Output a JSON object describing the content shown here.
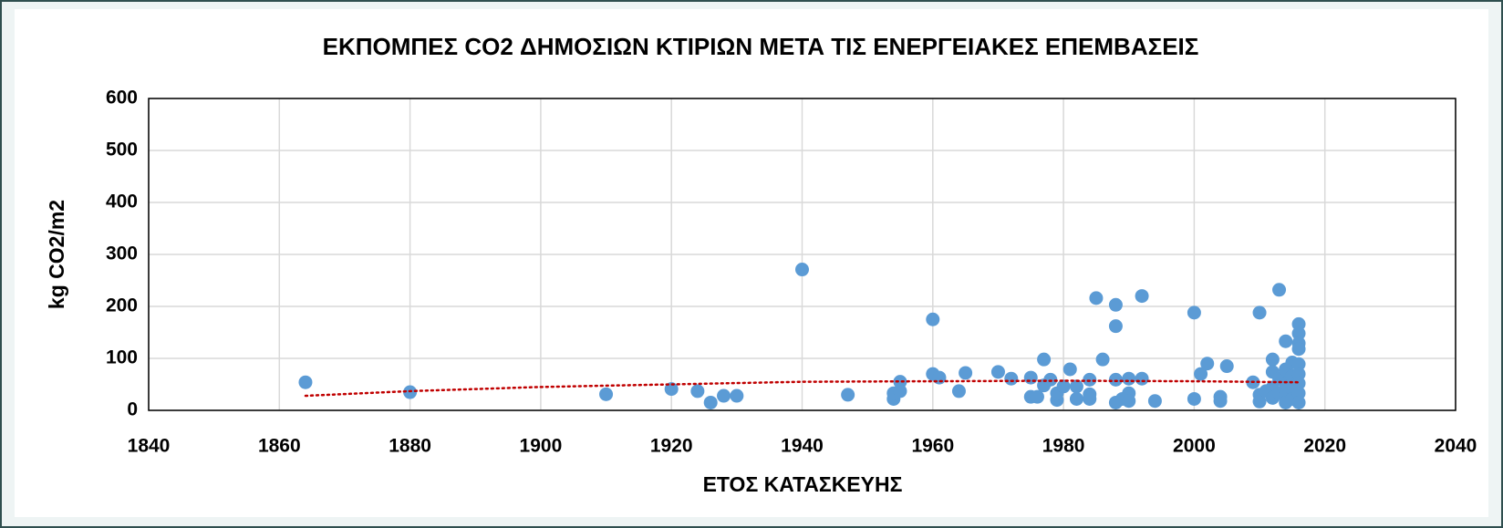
{
  "chart_data": {
    "type": "scatter",
    "title": "ΕΚΠΟΜΠΕΣ CO2 ΔΗΜΟΣΙΩΝ ΚΤΙΡΙΩΝ ΜΕΤΑ ΤΙΣ ΕΝΕΡΓΕΙΑΚΕΣ ΕΠΕΜΒΑΣΕΙΣ",
    "x_label": "ΕΤΟΣ ΚΑΤΑΣΚΕΥΗΣ",
    "y_label": "kg CO2/m2",
    "xlim": [
      1840,
      2040
    ],
    "xticks": [
      1840,
      1860,
      1880,
      1900,
      1920,
      1940,
      1960,
      1980,
      2000,
      2020,
      2040
    ],
    "ylim": [
      0,
      600
    ],
    "yticks": [
      0,
      100,
      200,
      300,
      400,
      500,
      600
    ],
    "grid": true,
    "series": [
      {
        "color": "#5b9bd5",
        "x": [
          1864,
          1880,
          1910,
          1920,
          1924,
          1926,
          1928,
          1930,
          1940,
          1947,
          1954,
          1954,
          1955,
          1955,
          1960,
          1960,
          1961,
          1964,
          1965,
          1970,
          1972,
          1975,
          1975,
          1976,
          1977,
          1977,
          1978,
          1979,
          1979,
          1980,
          1981,
          1982,
          1982,
          1984,
          1984,
          1984,
          1985,
          1986,
          1988,
          1988,
          1988,
          1988,
          1989,
          1990,
          1990,
          1990,
          1992,
          1992,
          1994,
          2000,
          2000,
          2001,
          2002,
          2004,
          2004,
          2005,
          2009,
          2010,
          2010,
          2010,
          2011,
          2012,
          2012,
          2012,
          2012,
          2013,
          2013,
          2013,
          2014,
          2014,
          2014,
          2014,
          2014,
          2015,
          2015,
          2015,
          2015,
          2016,
          2016,
          2016,
          2016,
          2016,
          2016,
          2016,
          2016,
          2016
        ],
        "values": [
          54,
          35,
          31,
          41,
          37,
          15,
          28,
          28,
          271,
          30,
          22,
          33,
          55,
          37,
          175,
          70,
          63,
          37,
          72,
          74,
          61,
          63,
          26,
          26,
          98,
          48,
          59,
          20,
          33,
          46,
          79,
          22,
          46,
          59,
          31,
          22,
          216,
          98,
          203,
          162,
          59,
          15,
          22,
          61,
          33,
          18,
          220,
          61,
          18,
          188,
          22,
          70,
          90,
          26,
          18,
          85,
          54,
          188,
          30,
          17,
          37,
          98,
          74,
          44,
          24,
          232,
          61,
          33,
          133,
          79,
          52,
          30,
          15,
          92,
          66,
          42,
          22,
          166,
          148,
          129,
          118,
          89,
          70,
          52,
          33,
          15
        ]
      }
    ],
    "trendline": {
      "color": "#c00000",
      "x": [
        1864,
        1880,
        1900,
        1920,
        1940,
        1960,
        1980,
        2000,
        2016
      ],
      "values": [
        28,
        37,
        45,
        50,
        55,
        56,
        57,
        56,
        54
      ]
    }
  }
}
